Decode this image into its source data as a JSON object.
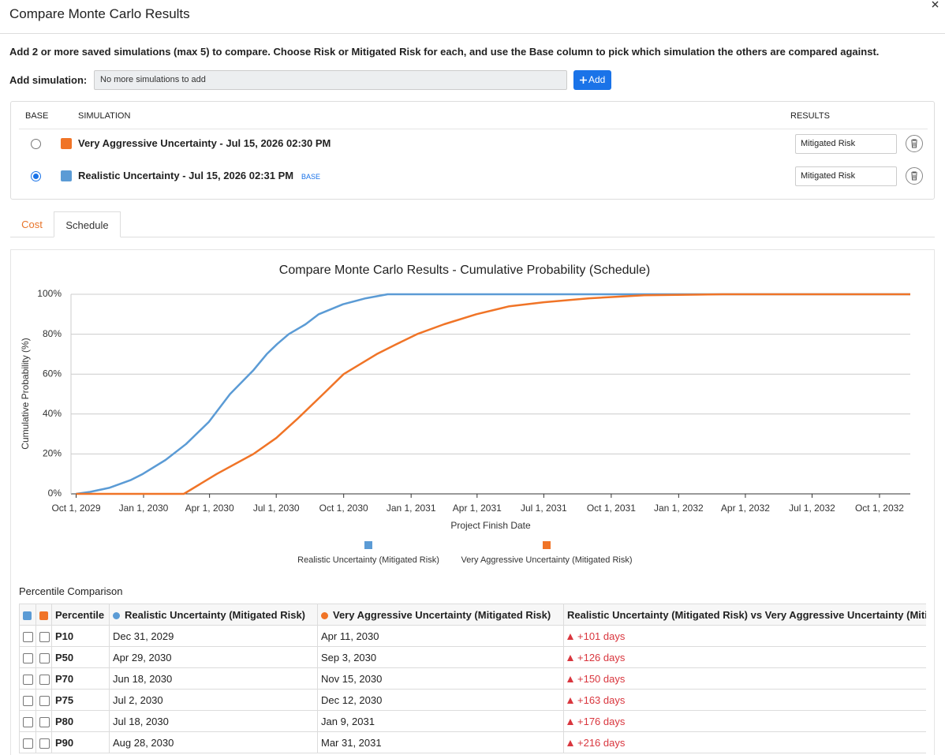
{
  "header": {
    "title": "Compare Monte Carlo Results"
  },
  "description": "Add 2 or more saved simulations (max 5) to compare. Choose Risk or Mitigated Risk for each, and use the Base column to pick which simulation the others are compared against.",
  "add_simulation": {
    "label": "Add simulation:",
    "placeholder": "No more simulations to add",
    "button": "Add"
  },
  "simulations": {
    "headers": [
      "BASE",
      "SIMULATION",
      "RESULTS"
    ],
    "rows": [
      {
        "name": "Very Aggressive Uncertainty - Jul 15, 2026 02:30 PM",
        "color": "#f07427",
        "results": "Mitigated Risk",
        "base": false
      },
      {
        "name": "Realistic Uncertainty - Jul 15, 2026 02:31 PM",
        "color": "#5b9bd5",
        "results": "Mitigated Risk",
        "base": true,
        "tag": "BASE"
      }
    ]
  },
  "tabs": {
    "items": [
      "Cost",
      "Schedule"
    ],
    "active": 1
  },
  "chart_data": {
    "type": "line",
    "title": "Compare Monte Carlo Results - Cumulative Probability (Schedule)",
    "x_label": "Project Finish Date",
    "y_label": "Cumulative Probability (%)",
    "xlim": [
      "2029-09-24",
      "2032-11-12"
    ],
    "xticks": [
      {
        "value": "2029-10-01",
        "label": "Oct 1, 2029"
      },
      {
        "value": "2030-01-01",
        "label": "Jan 1, 2030"
      },
      {
        "value": "2030-04-01",
        "label": "Apr 1, 2030"
      },
      {
        "value": "2030-07-01",
        "label": "Jul 1, 2030"
      },
      {
        "value": "2030-10-01",
        "label": "Oct 1, 2030"
      },
      {
        "value": "2031-01-01",
        "label": "Jan 1, 2031"
      },
      {
        "value": "2031-04-01",
        "label": "Apr 1, 2031"
      },
      {
        "value": "2031-07-01",
        "label": "Jul 1, 2031"
      },
      {
        "value": "2031-10-01",
        "label": "Oct 1, 2031"
      },
      {
        "value": "2032-01-01",
        "label": "Jan 1, 2032"
      },
      {
        "value": "2032-04-01",
        "label": "Apr 1, 2032"
      },
      {
        "value": "2032-07-01",
        "label": "Jul 1, 2032"
      },
      {
        "value": "2032-10-01",
        "label": "Oct 1, 2032"
      }
    ],
    "ylim": [
      0,
      100
    ],
    "yticks": [
      {
        "value": 0,
        "label": "0%"
      },
      {
        "value": 20,
        "label": "20%"
      },
      {
        "value": 40,
        "label": "40%"
      },
      {
        "value": 60,
        "label": "60%"
      },
      {
        "value": 80,
        "label": "80%"
      },
      {
        "value": 100,
        "label": "100%"
      }
    ],
    "grid": true,
    "series": [
      {
        "name": "Realistic Uncertainty (Mitigated Risk)",
        "color": "#5b9bd5",
        "x": [
          "2029-10-01",
          "2029-10-20",
          "2029-11-15",
          "2029-12-15",
          "2029-12-31",
          "2030-01-31",
          "2030-02-28",
          "2030-03-31",
          "2030-04-29",
          "2030-05-31",
          "2030-06-18",
          "2030-07-02",
          "2030-07-18",
          "2030-08-10",
          "2030-08-28",
          "2030-09-30",
          "2030-10-31",
          "2030-11-30",
          "2032-11-12"
        ],
        "values": [
          0,
          1,
          3,
          7,
          10,
          17,
          25,
          36,
          50,
          62,
          70,
          75,
          80,
          85,
          90,
          95,
          98,
          100,
          100
        ]
      },
      {
        "name": "Very Aggressive Uncertainty (Mitigated Risk)",
        "color": "#f07427",
        "x": [
          "2029-10-01",
          "2030-02-25",
          "2030-04-11",
          "2030-05-31",
          "2030-07-01",
          "2030-07-31",
          "2030-09-03",
          "2030-10-01",
          "2030-11-15",
          "2030-12-12",
          "2031-01-09",
          "2031-02-15",
          "2031-03-31",
          "2031-05-15",
          "2031-07-01",
          "2031-09-01",
          "2031-11-15",
          "2032-03-01",
          "2032-11-12"
        ],
        "values": [
          0,
          0,
          10,
          20,
          28,
          38,
          50,
          60,
          70,
          75,
          80,
          85,
          90,
          94,
          96,
          98,
          99.5,
          100,
          100
        ]
      }
    ]
  },
  "percentile_table": {
    "title": "Percentile Comparison",
    "columns": [
      "Percentile",
      "Realistic Uncertainty (Mitigated Risk)",
      "Very Aggressive Uncertainty (Mitigated Risk)",
      "Realistic Uncertainty (Mitigated Risk) vs Very Aggressive Uncertainty (Mitigated Risk)"
    ],
    "rows": [
      [
        "P10",
        "Dec 31, 2029",
        "Apr 11, 2030",
        "+101 days"
      ],
      [
        "P50",
        "Apr 29, 2030",
        "Sep 3, 2030",
        "+126 days"
      ],
      [
        "P70",
        "Jun 18, 2030",
        "Nov 15, 2030",
        "+150 days"
      ],
      [
        "P75",
        "Jul 2, 2030",
        "Dec 12, 2030",
        "+163 days"
      ],
      [
        "P80",
        "Jul 18, 2030",
        "Jan 9, 2031",
        "+176 days"
      ],
      [
        "P90",
        "Aug 28, 2030",
        "Mar 31, 2031",
        "+216 days"
      ]
    ]
  }
}
